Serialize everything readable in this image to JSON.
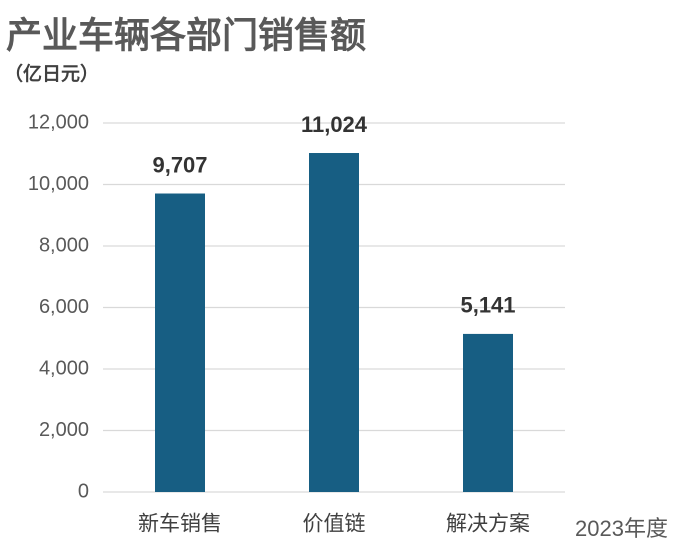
{
  "chart_data": {
    "type": "bar",
    "title": "产业车辆各部门销售额",
    "subtitle": "（亿日元）",
    "x_label": "2023年度",
    "categories": [
      "新车销售",
      "价值链",
      "解决方案"
    ],
    "values": [
      9707,
      11024,
      5141
    ],
    "value_labels": [
      "9,707",
      "11,024",
      "5,141"
    ],
    "color": "#175e83",
    "ylim": [
      0,
      12000
    ],
    "yticks": [
      0,
      {
        "value": 2000,
        "label": "2,000"
      },
      {
        "value": 4000,
        "label": "4,000"
      },
      {
        "value": 6000,
        "label": "6,000"
      },
      {
        "value": 8000,
        "label": "8,000"
      },
      {
        "value": 10000,
        "label": "10,000"
      },
      {
        "value": 12000,
        "label": "12,000"
      }
    ],
    "grid": true
  }
}
